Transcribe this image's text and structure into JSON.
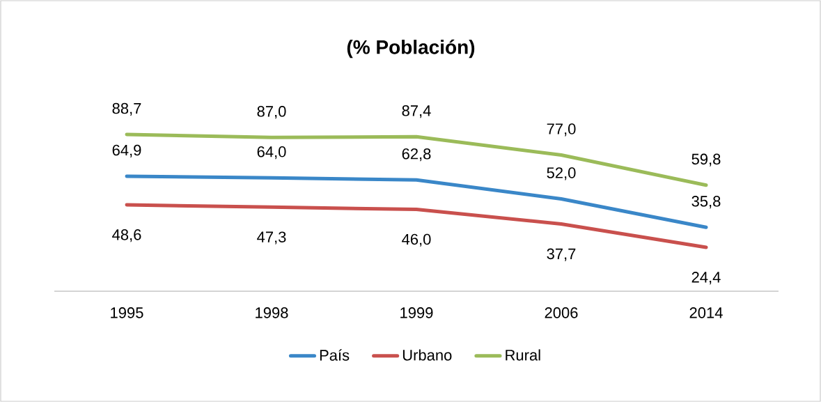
{
  "chart_data": {
    "type": "line",
    "title": "(% Población)",
    "categories": [
      "1995",
      "1998",
      "1999",
      "2006",
      "2014"
    ],
    "series": [
      {
        "name": "País",
        "color": "#3a87c8",
        "values": [
          64.9,
          64.0,
          62.8,
          52.0,
          35.8
        ],
        "value_labels": [
          "64,9",
          "64,0",
          "62,8",
          "52,0",
          "35,8"
        ]
      },
      {
        "name": "Urbano",
        "color": "#c9504d",
        "values": [
          48.6,
          47.3,
          46.0,
          37.7,
          24.4
        ],
        "value_labels": [
          "48,6",
          "47,3",
          "46,0",
          "37,7",
          "24,4"
        ]
      },
      {
        "name": "Rural",
        "color": "#9bbb59",
        "values": [
          88.7,
          87.0,
          87.4,
          77.0,
          59.8
        ],
        "value_labels": [
          "88,7",
          "87,0",
          "87,4",
          "77,0",
          "59,8"
        ]
      }
    ],
    "tick_labels": "x",
    "legend": "bottom",
    "marker": "none",
    "line_style": "solid"
  }
}
